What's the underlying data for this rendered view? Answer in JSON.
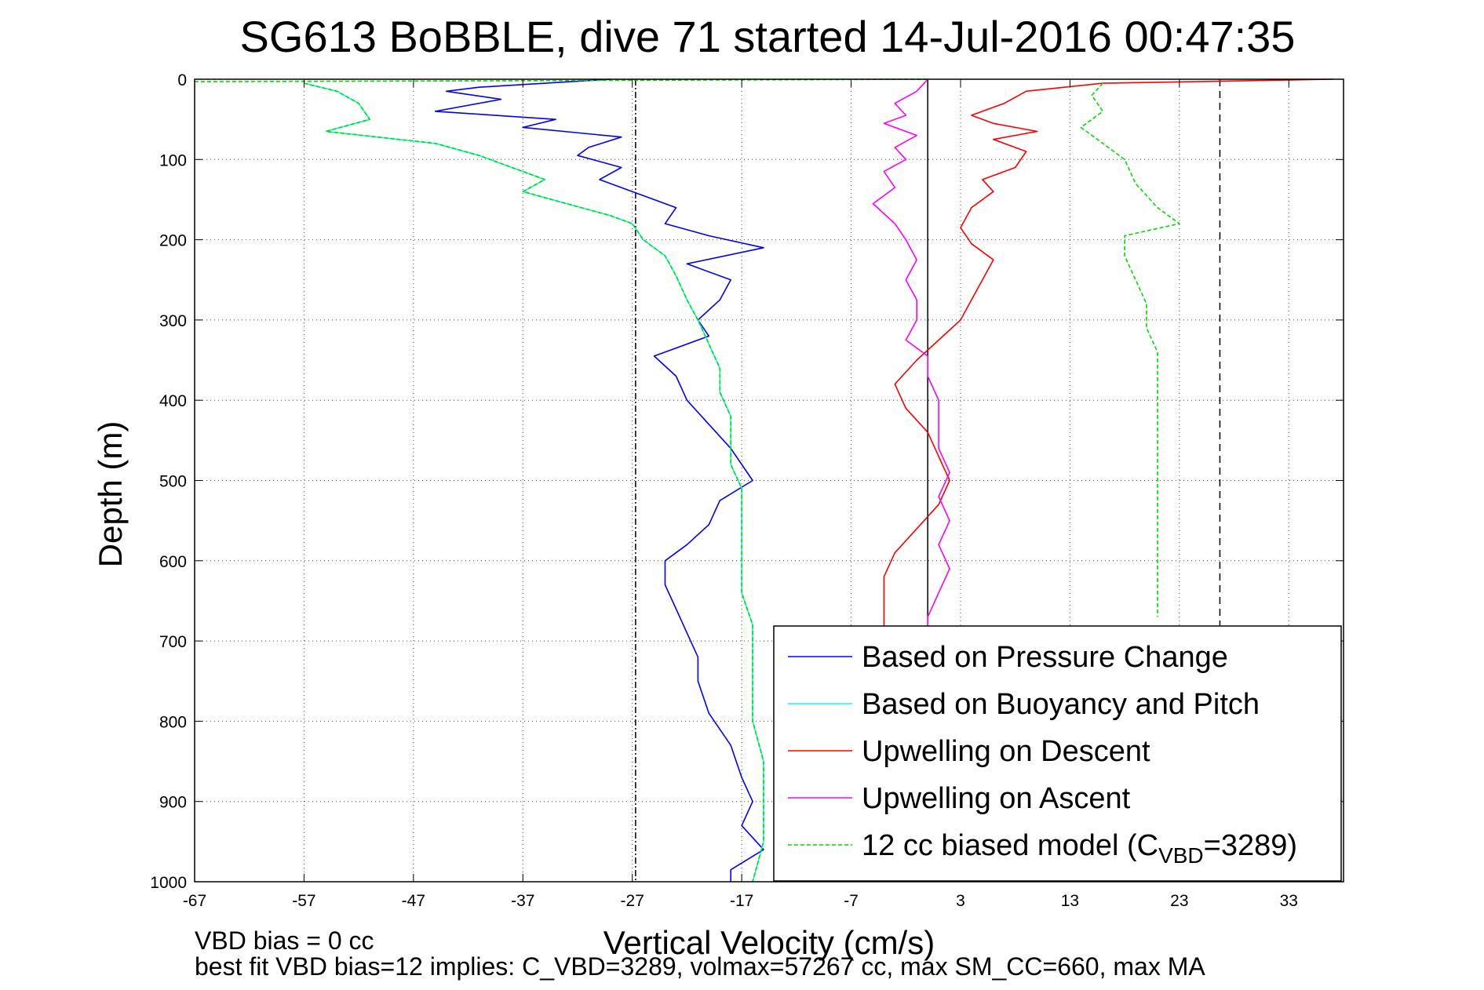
{
  "chart_data": {
    "type": "line",
    "title": "SG613 BoBBLE, dive 71 started 14-Jul-2016 00:47:35",
    "xlabel": "Vertical Velocity (cm/s)",
    "ylabel": "Depth (m)",
    "xlim": [
      -67,
      38
    ],
    "ylim": [
      1000,
      0
    ],
    "y_reversed": true,
    "xticks": [
      -67,
      -57,
      -47,
      -37,
      -27,
      -17,
      -7,
      3,
      13,
      23,
      33
    ],
    "yticks": [
      0,
      100,
      200,
      300,
      400,
      500,
      600,
      700,
      800,
      900,
      1000
    ],
    "grid": true,
    "legend_position": "bottom-right",
    "reference_lines": [
      {
        "x": -26.7,
        "style": "dash-dot"
      },
      {
        "x": 0,
        "style": "solid"
      },
      {
        "x": 26.7,
        "style": "dashed"
      }
    ],
    "series": [
      {
        "name": "Based on Pressure Change",
        "color": "#0000ff",
        "style": "solid",
        "points": [
          [
            -29,
            0
          ],
          [
            -41,
            10
          ],
          [
            -44,
            15
          ],
          [
            -39,
            25
          ],
          [
            -45,
            40
          ],
          [
            -34,
            50
          ],
          [
            -37,
            60
          ],
          [
            -28,
            72
          ],
          [
            -31,
            85
          ],
          [
            -32,
            95
          ],
          [
            -28,
            110
          ],
          [
            -30,
            125
          ],
          [
            -27,
            140
          ],
          [
            -23,
            160
          ],
          [
            -24,
            180
          ],
          [
            -20,
            195
          ],
          [
            -15,
            210
          ],
          [
            -22,
            230
          ],
          [
            -18,
            250
          ],
          [
            -19,
            275
          ],
          [
            -21,
            300
          ],
          [
            -20,
            320
          ],
          [
            -25,
            345
          ],
          [
            -23,
            370
          ],
          [
            -22,
            400
          ],
          [
            -20,
            430
          ],
          [
            -18,
            460
          ],
          [
            -17,
            480
          ],
          [
            -16,
            500
          ],
          [
            -19,
            525
          ],
          [
            -20,
            555
          ],
          [
            -22,
            580
          ],
          [
            -24,
            600
          ],
          [
            -24,
            630
          ],
          [
            -23,
            660
          ],
          [
            -22,
            690
          ],
          [
            -21,
            720
          ],
          [
            -21,
            750
          ],
          [
            -20,
            790
          ],
          [
            -18,
            830
          ],
          [
            -17,
            870
          ],
          [
            -16,
            900
          ],
          [
            -17,
            930
          ],
          [
            -15,
            960
          ],
          [
            -18,
            985
          ],
          [
            -18,
            1000
          ]
        ]
      },
      {
        "name": "Based on Buoyancy and Pitch",
        "color": "#00ffff",
        "style": "solid",
        "points": [
          [
            -57,
            5
          ],
          [
            -54,
            15
          ],
          [
            -52,
            30
          ],
          [
            -51,
            50
          ],
          [
            -55,
            65
          ],
          [
            -45,
            80
          ],
          [
            -41,
            95
          ],
          [
            -38,
            110
          ],
          [
            -35,
            125
          ],
          [
            -37,
            140
          ],
          [
            -33,
            155
          ],
          [
            -29,
            170
          ],
          [
            -27,
            180
          ],
          [
            -26,
            200
          ],
          [
            -24,
            220
          ],
          [
            -23,
            245
          ],
          [
            -22,
            275
          ],
          [
            -21,
            300
          ],
          [
            -20,
            330
          ],
          [
            -19,
            360
          ],
          [
            -19,
            390
          ],
          [
            -18,
            420
          ],
          [
            -18,
            450
          ],
          [
            -18,
            480
          ],
          [
            -17,
            510
          ],
          [
            -17,
            540
          ],
          [
            -17,
            570
          ],
          [
            -17,
            600
          ],
          [
            -17,
            640
          ],
          [
            -16,
            680
          ],
          [
            -16,
            720
          ],
          [
            -16,
            760
          ],
          [
            -16,
            800
          ],
          [
            -15,
            850
          ],
          [
            -15,
            900
          ],
          [
            -15,
            950
          ],
          [
            -16,
            1000
          ]
        ]
      },
      {
        "name": "Upwelling on Descent",
        "color": "#ff0000",
        "style": "solid",
        "points": [
          [
            37,
            0
          ],
          [
            16,
            5
          ],
          [
            9,
            15
          ],
          [
            7,
            30
          ],
          [
            4,
            45
          ],
          [
            6,
            55
          ],
          [
            10,
            65
          ],
          [
            6,
            75
          ],
          [
            9,
            90
          ],
          [
            8,
            110
          ],
          [
            5,
            125
          ],
          [
            6,
            140
          ],
          [
            4,
            160
          ],
          [
            3,
            185
          ],
          [
            4,
            205
          ],
          [
            6,
            225
          ],
          [
            5,
            250
          ],
          [
            4,
            275
          ],
          [
            3,
            300
          ],
          [
            1,
            325
          ],
          [
            -1,
            350
          ],
          [
            -3,
            380
          ],
          [
            -2,
            410
          ],
          [
            0,
            440
          ],
          [
            1,
            470
          ],
          [
            2,
            500
          ],
          [
            1,
            530
          ],
          [
            -1,
            560
          ],
          [
            -3,
            590
          ],
          [
            -4,
            620
          ],
          [
            -4,
            650
          ],
          [
            -4,
            700
          ],
          [
            -4,
            750
          ],
          [
            -4,
            800
          ],
          [
            -3,
            850
          ],
          [
            -3,
            900
          ],
          [
            -3,
            950
          ],
          [
            -3,
            1000
          ]
        ]
      },
      {
        "name": "Upwelling on Ascent",
        "color": "#ff00ff",
        "style": "solid",
        "points": [
          [
            0,
            0
          ],
          [
            -1,
            15
          ],
          [
            -3,
            30
          ],
          [
            -2,
            45
          ],
          [
            -4,
            55
          ],
          [
            -1,
            70
          ],
          [
            -3,
            85
          ],
          [
            -2,
            100
          ],
          [
            -4,
            115
          ],
          [
            -3,
            135
          ],
          [
            -5,
            155
          ],
          [
            -3,
            180
          ],
          [
            -2,
            200
          ],
          [
            -1,
            225
          ],
          [
            -2,
            250
          ],
          [
            -1,
            275
          ],
          [
            -1,
            300
          ],
          [
            -2,
            325
          ],
          [
            0,
            345
          ],
          [
            0,
            370
          ],
          [
            1,
            400
          ],
          [
            1,
            430
          ],
          [
            1,
            460
          ],
          [
            2,
            490
          ],
          [
            1,
            520
          ],
          [
            2,
            550
          ],
          [
            1,
            580
          ],
          [
            2,
            610
          ],
          [
            1,
            640
          ],
          [
            0,
            670
          ],
          [
            0,
            710
          ],
          [
            0,
            760
          ],
          [
            0,
            810
          ],
          [
            0,
            860
          ],
          [
            0,
            910
          ],
          [
            0,
            960
          ],
          [
            -1,
            1000
          ]
        ]
      },
      {
        "name": "12 cc biased model (C",
        "name_sub": "VBD",
        "name_tail": "=3289)",
        "color": "#00dd00",
        "style": "dashed",
        "points": [
          [
            -57,
            5
          ],
          [
            -54,
            15
          ],
          [
            -52,
            30
          ],
          [
            -51,
            50
          ],
          [
            -55,
            65
          ],
          [
            -45,
            80
          ],
          [
            -41,
            95
          ],
          [
            -38,
            110
          ],
          [
            -35,
            125
          ],
          [
            -37,
            140
          ],
          [
            -33,
            155
          ],
          [
            -29,
            170
          ],
          [
            -27,
            180
          ],
          [
            -26,
            200
          ],
          [
            -24,
            220
          ],
          [
            -23,
            245
          ],
          [
            -22,
            275
          ],
          [
            -21,
            300
          ],
          [
            -20,
            330
          ],
          [
            -19,
            360
          ],
          [
            -19,
            390
          ],
          [
            -18,
            420
          ],
          [
            -18,
            450
          ],
          [
            -18,
            480
          ],
          [
            -17,
            510
          ],
          [
            -17,
            540
          ],
          [
            -17,
            570
          ],
          [
            -17,
            600
          ],
          [
            -17,
            640
          ],
          [
            -16,
            680
          ],
          [
            -16,
            720
          ],
          [
            -16,
            760
          ],
          [
            -16,
            800
          ],
          [
            -15,
            850
          ],
          [
            -15,
            900
          ],
          [
            -15,
            950
          ],
          [
            -16,
            1000
          ]
        ]
      },
      {
        "name": "",
        "color": "#00dd00",
        "style": "dashed",
        "points": [
          [
            -67,
            3
          ],
          [
            -40,
            2
          ],
          [
            -20,
            1
          ],
          [
            0,
            0
          ]
        ]
      },
      {
        "name": "",
        "color": "#00dd00",
        "style": "dashed",
        "points": [
          [
            16,
            5
          ],
          [
            15,
            20
          ],
          [
            16,
            40
          ],
          [
            14,
            60
          ],
          [
            16,
            80
          ],
          [
            18,
            100
          ],
          [
            19,
            130
          ],
          [
            21,
            160
          ],
          [
            23,
            180
          ],
          [
            18,
            195
          ],
          [
            18,
            220
          ],
          [
            19,
            250
          ],
          [
            20,
            280
          ],
          [
            20,
            310
          ],
          [
            21,
            340
          ],
          [
            21,
            370
          ],
          [
            21,
            400
          ],
          [
            21,
            430
          ],
          [
            21,
            460
          ],
          [
            21,
            490
          ],
          [
            21,
            520
          ],
          [
            21,
            550
          ],
          [
            21,
            580
          ],
          [
            21,
            610
          ],
          [
            21,
            640
          ],
          [
            21,
            670
          ]
        ]
      }
    ],
    "footnotes": [
      "VBD bias = 0 cc",
      "best fit VBD bias=12 implies: C_VBD=3289, volmax=57267 cc, max SM_CC=660, max MA"
    ]
  }
}
